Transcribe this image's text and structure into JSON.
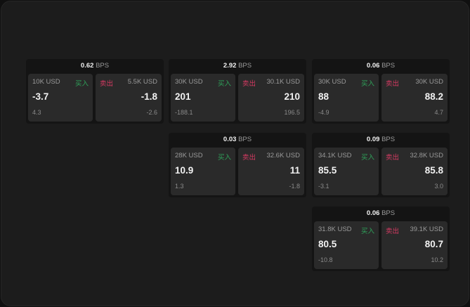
{
  "unit": "BPS",
  "buy_label": "买入",
  "sell_label": "卖出",
  "widgets": [
    {
      "spread": "0.62",
      "buy": {
        "size": "10K USD",
        "price": "-3.7",
        "change": "4.3"
      },
      "sell": {
        "size": "5.5K USD",
        "price": "-1.8",
        "change": "-2.6"
      }
    },
    {
      "spread": "2.92",
      "buy": {
        "size": "30K USD",
        "price": "201",
        "change": "-188.1"
      },
      "sell": {
        "size": "30.1K USD",
        "price": "210",
        "change": "196.5"
      }
    },
    {
      "spread": "0.06",
      "buy": {
        "size": "30K USD",
        "price": "88",
        "change": "-4.9"
      },
      "sell": {
        "size": "30K USD",
        "price": "88.2",
        "change": "4.7"
      }
    },
    {
      "spread": "0.03",
      "buy": {
        "size": "28K USD",
        "price": "10.9",
        "change": "1.3"
      },
      "sell": {
        "size": "32.6K USD",
        "price": "11",
        "change": "-1.8"
      }
    },
    {
      "spread": "0.09",
      "buy": {
        "size": "34.1K USD",
        "price": "85.5",
        "change": "-3.1"
      },
      "sell": {
        "size": "32.8K USD",
        "price": "85.8",
        "change": "3.0"
      }
    },
    {
      "spread": "0.06",
      "buy": {
        "size": "31.8K USD",
        "price": "80.5",
        "change": "-10.8"
      },
      "sell": {
        "size": "39.1K USD",
        "price": "80.7",
        "change": "10.2"
      }
    }
  ]
}
